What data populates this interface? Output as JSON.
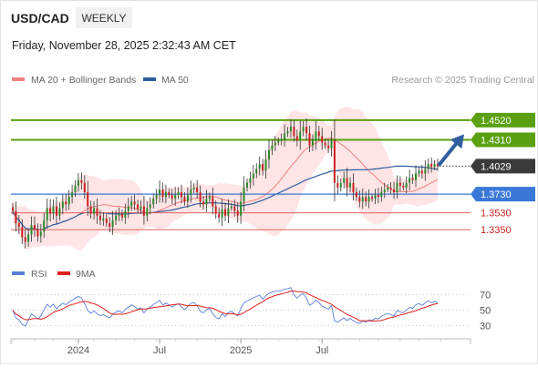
{
  "header": {
    "symbol": "USD/CAD",
    "timeframe": "WEEKLY",
    "timestamp": "Friday, November 28, 2025 2:32:43 AM CET"
  },
  "legend": {
    "ma20_label": "MA 20 + Bollinger Bands",
    "ma20_color": "#f08080",
    "ma50_label": "MA 50",
    "ma50_color": "#2e5e9e",
    "credit": "Research © 2025 Trading Central"
  },
  "rsi_legend": {
    "rsi_label": "RSI",
    "rsi_color": "#5b7fd8",
    "ma9_label": "9MA",
    "ma9_color": "#e02020"
  },
  "colors": {
    "resistance": "#5aa010",
    "support": "#3a78d8",
    "target_line": "#e06060",
    "arrow": "#2f5f9f",
    "bull_candle": "#2a8a2a",
    "bear_candle": "#c82020",
    "band_fill": "#ffdcdc",
    "price_tag": "#3a3a3a"
  },
  "chart_data": [
    {
      "type": "candlestick",
      "ylim": [
        1.305,
        1.485
      ],
      "x_ticks": [
        "2024",
        "Jul",
        "2025",
        "Jul"
      ],
      "levels": [
        {
          "name": "resistance-2",
          "value": 1.452,
          "label": "1.4520",
          "kind": "resistance"
        },
        {
          "name": "resistance-1",
          "value": 1.431,
          "label": "1.4310",
          "kind": "resistance"
        },
        {
          "name": "last-price",
          "value": 1.4029,
          "label": "1.4029",
          "kind": "price"
        },
        {
          "name": "pivot",
          "value": 1.373,
          "label": "1.3730",
          "kind": "pivot"
        },
        {
          "name": "support-1",
          "value": 1.353,
          "label": "1.3530",
          "kind": "support"
        },
        {
          "name": "support-2",
          "value": 1.335,
          "label": "1.3350",
          "kind": "support"
        }
      ],
      "close_2023_2025": [
        1.355,
        1.342,
        1.338,
        1.327,
        1.322,
        1.33,
        1.34,
        1.335,
        1.328,
        1.333,
        1.345,
        1.358,
        1.352,
        1.36,
        1.35,
        1.358,
        1.365,
        1.362,
        1.37,
        1.375,
        1.382,
        1.388,
        1.385,
        1.375,
        1.36,
        1.352,
        1.358,
        1.35,
        1.345,
        1.347,
        1.342,
        1.338,
        1.345,
        1.35,
        1.352,
        1.348,
        1.355,
        1.36,
        1.365,
        1.362,
        1.357,
        1.36,
        1.35,
        1.358,
        1.362,
        1.368,
        1.372,
        1.378,
        1.37,
        1.375,
        1.372,
        1.368,
        1.372,
        1.375,
        1.37,
        1.365,
        1.372,
        1.378,
        1.38,
        1.375,
        1.365,
        1.362,
        1.368,
        1.37,
        1.36,
        1.352,
        1.348,
        1.357,
        1.35,
        1.358,
        1.36,
        1.355,
        1.35,
        1.365,
        1.38,
        1.385,
        1.39,
        1.395,
        1.4,
        1.405,
        1.398,
        1.41,
        1.42,
        1.425,
        1.428,
        1.43,
        1.432,
        1.438,
        1.44,
        1.445,
        1.435,
        1.43,
        1.44,
        1.445,
        1.438,
        1.425,
        1.43,
        1.44,
        1.435,
        1.428,
        1.425,
        1.422,
        1.43,
        1.385,
        1.38,
        1.385,
        1.39,
        1.38,
        1.385,
        1.375,
        1.37,
        1.365,
        1.37,
        1.365,
        1.37,
        1.368,
        1.372,
        1.37,
        1.375,
        1.378,
        1.38,
        1.378,
        1.375,
        1.385,
        1.382,
        1.38,
        1.385,
        1.39,
        1.388,
        1.395,
        1.398,
        1.395,
        1.4,
        1.405,
        1.402,
        1.405,
        1.4029
      ],
      "rsi": {
        "ylim": [
          20,
          80
        ],
        "ticks": [
          70,
          50,
          30
        ]
      }
    }
  ]
}
